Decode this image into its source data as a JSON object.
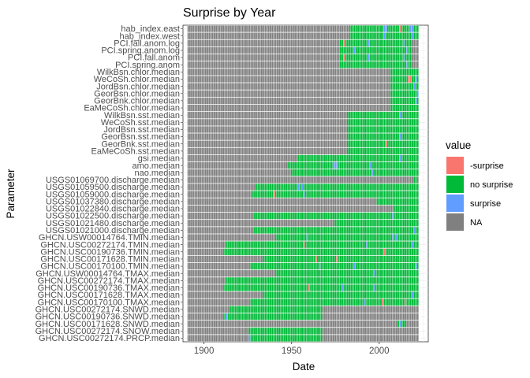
{
  "chart_data": {
    "type": "heatmap",
    "title": "Surprise by Year",
    "xlabel": "Date",
    "ylabel": "Parameter",
    "xlim": [
      1888,
      2028
    ],
    "x_ticks": [
      1900,
      1950,
      2000
    ],
    "grid": true,
    "legend": {
      "title": "value",
      "position": "right",
      "items": [
        {
          "label": "-surprise",
          "color": "#F8766D"
        },
        {
          "label": "no surprise",
          "color": "#00BA38"
        },
        {
          "label": "surprise",
          "color": "#619CFF"
        },
        {
          "label": "NA",
          "color": "#808080"
        }
      ]
    },
    "x_extent": [
      1891,
      2022
    ],
    "rows": [
      {
        "name": "hab_index.east",
        "data_start": 1984,
        "data_end": 2022,
        "neg": [
          2012
        ],
        "pos": [
          2003,
          2004,
          2018,
          2019
        ]
      },
      {
        "name": "hab_index.west",
        "data_start": 1984,
        "data_end": 2022,
        "neg": [],
        "pos": [
          2003,
          2019
        ]
      },
      {
        "name": "PCI.fall.anom.log",
        "data_start": 1978,
        "data_end": 2018,
        "neg": [
          1980
        ],
        "pos": [
          1994,
          2014
        ]
      },
      {
        "name": "PCI.spring.anom.log",
        "data_start": 1978,
        "data_end": 2018,
        "neg": [],
        "pos": [
          1986,
          2016
        ]
      },
      {
        "name": "PCI.fall.anom",
        "data_start": 1978,
        "data_end": 2018,
        "neg": [
          1980
        ],
        "pos": [
          1994,
          2014
        ]
      },
      {
        "name": "PCI.spring.anom",
        "data_start": 1978,
        "data_end": 2018,
        "neg": [],
        "pos": [
          2016
        ]
      },
      {
        "name": "WilkBsn.chlor.median",
        "data_start": 2007,
        "data_end": 2022,
        "neg": [],
        "pos": []
      },
      {
        "name": "WeCoSh.chlor.median",
        "data_start": 2007,
        "data_end": 2022,
        "neg": [
          2017,
          2018
        ],
        "pos": [
          2021
        ]
      },
      {
        "name": "JordBsn.chlor.median",
        "data_start": 2007,
        "data_end": 2022,
        "neg": [],
        "pos": [
          2020
        ]
      },
      {
        "name": "GeorBsn.chlor.median",
        "data_start": 2007,
        "data_end": 2022,
        "neg": [],
        "pos": [
          2022
        ]
      },
      {
        "name": "GeorBnk.chlor.median",
        "data_start": 2007,
        "data_end": 2022,
        "neg": [],
        "pos": [
          2021
        ]
      },
      {
        "name": "EaMeCoSh.chlor.median",
        "data_start": 2007,
        "data_end": 2022,
        "neg": [],
        "pos": []
      },
      {
        "name": "WilkBsn.sst.median",
        "data_start": 1982,
        "data_end": 2022,
        "neg": [],
        "pos": [
          2012
        ]
      },
      {
        "name": "WeCoSh.sst.median",
        "data_start": 1982,
        "data_end": 2022,
        "neg": [],
        "pos": []
      },
      {
        "name": "JordBsn.sst.median",
        "data_start": 1982,
        "data_end": 2022,
        "neg": [],
        "pos": []
      },
      {
        "name": "GeorBsn.sst.median",
        "data_start": 1982,
        "data_end": 2022,
        "neg": [],
        "pos": [
          2012
        ]
      },
      {
        "name": "GeorBnk.sst.median",
        "data_start": 1982,
        "data_end": 2022,
        "neg": [
          2004
        ],
        "pos": []
      },
      {
        "name": "EaMeCoSh.sst.median",
        "data_start": 1982,
        "data_end": 2022,
        "neg": [],
        "pos": []
      },
      {
        "name": "gsi.median",
        "data_start": 1954,
        "data_end": 2022,
        "neg": [],
        "pos": [
          2012
        ]
      },
      {
        "name": "amo.median",
        "data_start": 1948,
        "data_end": 2022,
        "neg": [],
        "pos": [
          1974,
          1975,
          1976,
          1995
        ]
      },
      {
        "name": "nao.median",
        "data_start": 1950,
        "data_end": 2022,
        "neg": [],
        "pos": [
          1996
        ]
      },
      {
        "name": "USGS01069700.discharge.median",
        "data_start": 2020,
        "data_end": 2021,
        "neg": [],
        "pos": []
      },
      {
        "name": "USGS01059500.discharge.median",
        "data_start": 1930,
        "data_end": 2022,
        "neg": [],
        "pos": [
          1954,
          1956
        ]
      },
      {
        "name": "USGS01059000.discharge.median",
        "data_start": 1928,
        "data_end": 2022,
        "neg": [
          1940
        ],
        "pos": [
          1957
        ]
      },
      {
        "name": "USGS01037380.discharge.median",
        "data_start": 1999,
        "data_end": 2022,
        "neg": [],
        "pos": []
      },
      {
        "name": "USGS01022840.discharge.median",
        "data_start": 2009,
        "data_end": 2022,
        "neg": [],
        "pos": []
      },
      {
        "name": "USGS01022500.discharge.median",
        "data_start": 1929,
        "data_end": 2022,
        "neg": [],
        "pos": [
          2008
        ]
      },
      {
        "name": "USGS01021480.discharge.median",
        "data_start": 1975,
        "data_end": 2022,
        "neg": [],
        "pos": []
      },
      {
        "name": "USGS01021000.discharge.median",
        "data_start": 1929,
        "data_end": 2022,
        "neg": [],
        "pos": [
          2020
        ]
      },
      {
        "name": "GHCN.USW00014764.TMIN.median",
        "data_start": 1941,
        "data_end": 2022,
        "neg": [],
        "pos": [
          1959,
          2008,
          2010
        ]
      },
      {
        "name": "GHCN.USC00272174.TMIN.median",
        "data_start": 1913,
        "data_end": 2022,
        "neg": [
          1957
        ],
        "pos": [
          1993,
          2019
        ]
      },
      {
        "name": "GHCN.USC00190736.TMIN.median",
        "data_start": 1912,
        "data_end": 2022,
        "neg": [
          2003
        ],
        "pos": []
      },
      {
        "name": "GHCN.USC00171628.TMIN.median",
        "data_start": 1934,
        "data_end": 2022,
        "neg": [
          1964,
          1976
        ],
        "pos": []
      },
      {
        "name": "GHCN.USC00170100.TMIN.median",
        "data_start": 1927,
        "data_end": 2022,
        "neg": [],
        "pos": [
          1966,
          1986,
          2021
        ]
      },
      {
        "name": "GHCN.USW00014764.TMAX.median",
        "data_start": 1941,
        "data_end": 2022,
        "neg": [],
        "pos": [
          1997
        ]
      },
      {
        "name": "GHCN.USC00272174.TMAX.median",
        "data_start": 1913,
        "data_end": 2022,
        "neg": [],
        "pos": []
      },
      {
        "name": "GHCN.USC00190736.TMAX.median",
        "data_start": 1912,
        "data_end": 2022,
        "neg": [
          1960
        ],
        "pos": [
          1979,
          1997
        ]
      },
      {
        "name": "GHCN.USC00171628.TMAX.median",
        "data_start": 1934,
        "data_end": 2022,
        "neg": [],
        "pos": [
          2019
        ]
      },
      {
        "name": "GHCN.USC00170100.TMAX.median",
        "data_start": 1927,
        "data_end": 2022,
        "neg": [
          2002,
          2015
        ],
        "pos": [
          1992
        ]
      },
      {
        "name": "GHCN.USC00272174.SNWD.median",
        "data_start": 1915,
        "data_end": 1967,
        "neg": [],
        "pos": []
      },
      {
        "name": "GHCN.USC00190736.SNWD.median",
        "data_start": 1912,
        "data_end": 1967,
        "neg": [],
        "pos": [
          1913
        ]
      },
      {
        "name": "GHCN.USC00171628.SNWD.median",
        "data_start": 2011,
        "data_end": 2015,
        "neg": [],
        "pos": [
          2012
        ]
      },
      {
        "name": "GHCN.USC00272174.SNOW.median",
        "data_start": 1926,
        "data_end": 1967,
        "neg": [],
        "pos": []
      },
      {
        "name": "GHCN.USC00272174.PRCP.median",
        "data_start": 1926,
        "data_end": 1967,
        "neg": [],
        "pos": [
          1926
        ]
      }
    ]
  }
}
